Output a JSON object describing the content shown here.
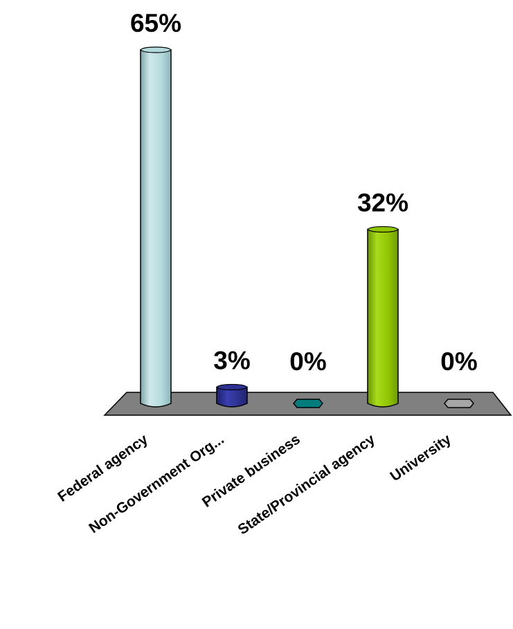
{
  "chart_data": {
    "type": "bar",
    "categories": [
      "Federal agency",
      "Non-Government Org...",
      "Private business",
      "State/Provincial agency",
      "University"
    ],
    "values": [
      65,
      3,
      0,
      32,
      0
    ],
    "data_labels": [
      "65%",
      "3%",
      "0%",
      "32%",
      "0%"
    ],
    "unit": "%",
    "title": "",
    "xlabel": "",
    "ylabel": "",
    "ylim": [
      0,
      65
    ],
    "grid": false,
    "legend": "none",
    "colors": [
      "#b4d9dc",
      "#2e3192",
      "#007c7c",
      "#8fc400",
      "#a6a6a6"
    ],
    "floor_color": "#808080"
  }
}
